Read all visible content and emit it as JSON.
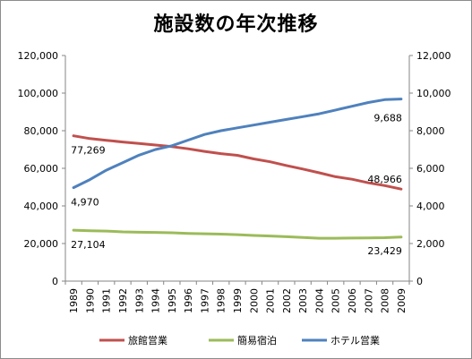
{
  "chart_data": {
    "type": "line",
    "title": "施設数の年次推移",
    "x": [
      "1989",
      "1990",
      "1991",
      "1992",
      "1993",
      "1994",
      "1995",
      "1996",
      "1997",
      "1998",
      "1999",
      "2000",
      "2001",
      "2002",
      "2003",
      "2004",
      "2005",
      "2006",
      "2007",
      "2008",
      "2009"
    ],
    "y_left": {
      "ticks": [
        "0",
        "20,000",
        "40,000",
        "60,000",
        "80,000",
        "100,000",
        "120,000"
      ],
      "ylim": [
        0,
        120000
      ]
    },
    "y_right": {
      "ticks": [
        "0",
        "2,000",
        "4,000",
        "6,000",
        "8,000",
        "10,000",
        "12,000"
      ],
      "ylim": [
        0,
        12000
      ]
    },
    "grid": false,
    "legend_position": "bottom",
    "series": [
      {
        "name": "旅館営業",
        "axis": "left",
        "color": "#c0504d",
        "values": [
          77269,
          75800,
          74900,
          74000,
          73200,
          72400,
          71500,
          70400,
          69000,
          67800,
          66900,
          65000,
          63500,
          61500,
          59600,
          57600,
          55500,
          54200,
          52300,
          50800,
          48966
        ],
        "labels": [
          {
            "index": 0,
            "text": "77,269"
          },
          {
            "index": 20,
            "text": "48,966"
          }
        ]
      },
      {
        "name": "簡易宿泊",
        "axis": "left",
        "color": "#9bbb59",
        "values": [
          27104,
          26800,
          26600,
          26200,
          26000,
          25900,
          25700,
          25400,
          25200,
          25000,
          24700,
          24300,
          24000,
          23600,
          23200,
          22800,
          22800,
          22900,
          23000,
          23100,
          23429
        ],
        "labels": [
          {
            "index": 0,
            "text": "27,104"
          },
          {
            "index": 20,
            "text": "23,429"
          }
        ]
      },
      {
        "name": "ホテル営業",
        "axis": "right",
        "color": "#4f81bd",
        "values": [
          4970,
          5400,
          5900,
          6300,
          6700,
          7000,
          7200,
          7500,
          7800,
          8000,
          8150,
          8300,
          8450,
          8600,
          8750,
          8900,
          9100,
          9300,
          9500,
          9650,
          9688
        ],
        "labels": [
          {
            "index": 0,
            "text": "4,970"
          },
          {
            "index": 20,
            "text": "9,688"
          }
        ]
      }
    ]
  }
}
